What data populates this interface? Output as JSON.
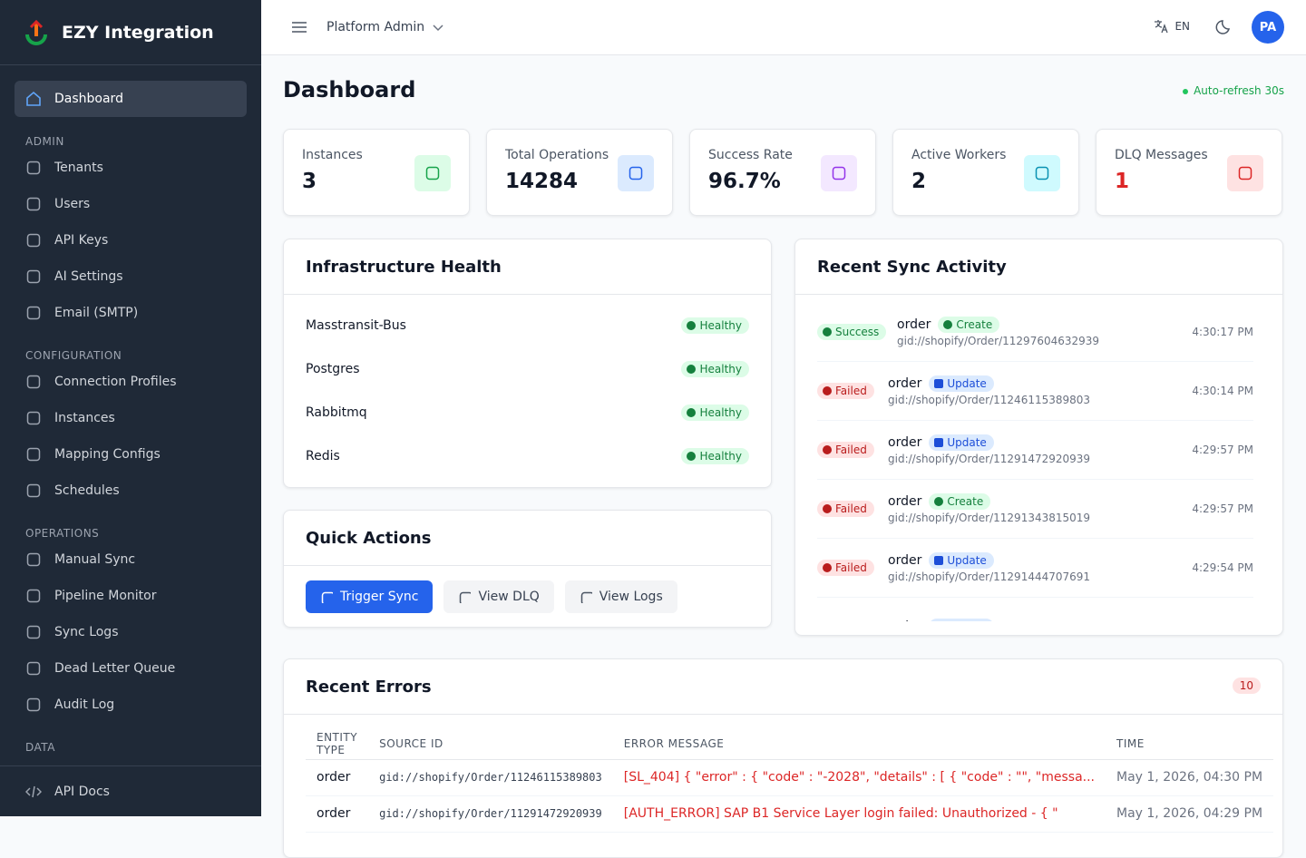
{
  "brand": "EZY Integration",
  "nav": {
    "main": "Dashboard",
    "sections": [
      {
        "label": "ADMIN",
        "items": [
          "Tenants",
          "Users",
          "API Keys",
          "AI Settings",
          "Email (SMTP)"
        ]
      },
      {
        "label": "CONFIGURATION",
        "items": [
          "Connection Profiles",
          "Instances",
          "Mapping Configs",
          "Schedules"
        ]
      },
      {
        "label": "OPERATIONS",
        "items": [
          "Manual Sync",
          "Pipeline Monitor",
          "Sync Logs",
          "Dead Letter Queue",
          "Audit Log"
        ]
      },
      {
        "label": "DATA",
        "items": []
      }
    ],
    "footer": "API Docs"
  },
  "topbar": {
    "workspace": "Platform Admin",
    "language": "EN",
    "avatar": "PA"
  },
  "header": {
    "title": "Dashboard",
    "refresh": "Auto-refresh 30s"
  },
  "stats": [
    {
      "label": "Instances",
      "value": 3
    },
    {
      "label": "Total Operations",
      "value": 14284
    },
    {
      "label": "Success Rate",
      "value": "96.7%"
    },
    {
      "label": "Active Workers",
      "value": 2
    },
    {
      "label": "DLQ Messages",
      "value": 1
    }
  ],
  "health": {
    "title": "Infrastructure Health",
    "items": [
      {
        "name": "Masstransit-Bus",
        "status": "Healthy"
      },
      {
        "name": "Postgres",
        "status": "Healthy"
      },
      {
        "name": "Rabbitmq",
        "status": "Healthy"
      },
      {
        "name": "Redis",
        "status": "Healthy"
      }
    ]
  },
  "actions": {
    "title": "Quick Actions",
    "buttons": [
      "Trigger Sync",
      "View DLQ",
      "View Logs"
    ]
  },
  "sync": {
    "title": "Recent Sync Activity",
    "items": [
      {
        "status": "Success",
        "entity": "order",
        "op": "Create",
        "id": "gid://shopify/Order/11297604632939",
        "time": "4:30:17 PM"
      },
      {
        "status": "Failed",
        "entity": "order",
        "op": "Update",
        "id": "gid://shopify/Order/11246115389803",
        "time": "4:30:14 PM"
      },
      {
        "status": "Failed",
        "entity": "order",
        "op": "Update",
        "id": "gid://shopify/Order/11291472920939",
        "time": "4:29:57 PM"
      },
      {
        "status": "Failed",
        "entity": "order",
        "op": "Create",
        "id": "gid://shopify/Order/11291343815019",
        "time": "4:29:57 PM"
      },
      {
        "status": "Failed",
        "entity": "order",
        "op": "Update",
        "id": "gid://shopify/Order/11291444707691",
        "time": "4:29:54 PM"
      },
      {
        "entity": "order",
        "op": "Update"
      }
    ]
  },
  "errors": {
    "title": "Recent Errors",
    "count": 10,
    "columns": [
      "ENTITY TYPE",
      "SOURCE ID",
      "ERROR MESSAGE",
      "TIME"
    ],
    "rows": [
      [
        "order",
        "gid://shopify/Order/11246115389803",
        "[SL_404] { \"error\" : { \"code\" : \"-2028\", \"details\" : [ { \"code\" : \"\", \"messa...",
        "May 1, 2026, 04:30 PM"
      ],
      [
        "order",
        "gid://shopify/Order/11291472920939",
        "[AUTH_ERROR] SAP B1 Service Layer login failed: Unauthorized - { \"",
        "May 1, 2026, 04:29 PM"
      ]
    ]
  }
}
